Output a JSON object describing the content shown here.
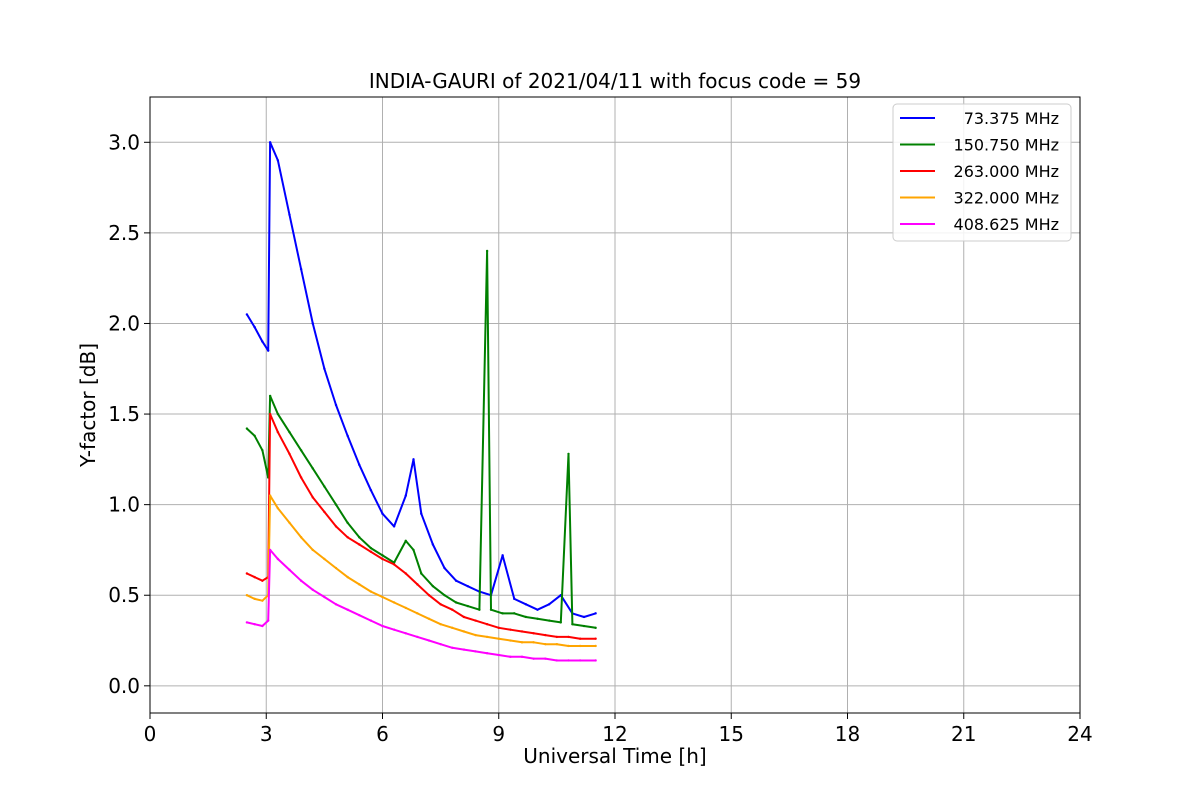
{
  "chart_data": {
    "type": "line",
    "title": "INDIA-GAURI of 2021/04/11 with focus code = 59",
    "xlabel": "Universal Time [h]",
    "ylabel": "Y-factor [dB]",
    "xlim": [
      0,
      24
    ],
    "ylim": [
      -0.15,
      3.25
    ],
    "xticks": [
      0,
      3,
      6,
      9,
      12,
      15,
      18,
      21,
      24
    ],
    "xtick_labels": [
      "0",
      "3",
      "6",
      "9",
      "12",
      "15",
      "18",
      "21",
      "24"
    ],
    "yticks": [
      0.0,
      0.5,
      1.0,
      1.5,
      2.0,
      2.5,
      3.0
    ],
    "ytick_labels": [
      "0.0",
      "0.5",
      "1.0",
      "1.5",
      "2.0",
      "2.5",
      "3.0"
    ],
    "grid": true,
    "legend_position": "top-right",
    "series": [
      {
        "name": "73.375 MHz",
        "color": "#0000ff",
        "x": [
          2.5,
          2.7,
          2.9,
          3.05,
          3.1,
          3.3,
          3.6,
          3.9,
          4.2,
          4.5,
          4.8,
          5.1,
          5.4,
          5.7,
          6.0,
          6.3,
          6.6,
          6.8,
          7.0,
          7.3,
          7.6,
          7.9,
          8.2,
          8.5,
          8.8,
          9.1,
          9.4,
          9.7,
          10.0,
          10.3,
          10.6,
          10.9,
          11.2,
          11.5
        ],
        "y": [
          2.05,
          1.98,
          1.9,
          1.85,
          3.0,
          2.9,
          2.6,
          2.3,
          2.0,
          1.75,
          1.55,
          1.38,
          1.22,
          1.08,
          0.95,
          0.88,
          1.05,
          1.25,
          0.95,
          0.78,
          0.65,
          0.58,
          0.55,
          0.52,
          0.5,
          0.72,
          0.48,
          0.45,
          0.42,
          0.45,
          0.5,
          0.4,
          0.38,
          0.4
        ]
      },
      {
        "name": "150.750 MHz",
        "color": "#008000",
        "x": [
          2.5,
          2.7,
          2.9,
          3.05,
          3.1,
          3.3,
          3.6,
          3.9,
          4.2,
          4.5,
          4.8,
          5.1,
          5.4,
          5.7,
          6.0,
          6.3,
          6.6,
          6.8,
          7.0,
          7.3,
          7.6,
          7.9,
          8.2,
          8.5,
          8.7,
          8.8,
          9.1,
          9.4,
          9.7,
          10.0,
          10.3,
          10.6,
          10.8,
          10.9,
          11.2,
          11.5
        ],
        "y": [
          1.42,
          1.38,
          1.3,
          1.15,
          1.6,
          1.5,
          1.4,
          1.3,
          1.2,
          1.1,
          1.0,
          0.9,
          0.82,
          0.76,
          0.72,
          0.68,
          0.8,
          0.75,
          0.62,
          0.55,
          0.5,
          0.46,
          0.44,
          0.42,
          2.4,
          0.42,
          0.4,
          0.4,
          0.38,
          0.37,
          0.36,
          0.35,
          1.28,
          0.34,
          0.33,
          0.32
        ]
      },
      {
        "name": "263.000 MHz",
        "color": "#ff0000",
        "x": [
          2.5,
          2.7,
          2.9,
          3.05,
          3.1,
          3.3,
          3.6,
          3.9,
          4.2,
          4.5,
          4.8,
          5.1,
          5.4,
          5.7,
          6.0,
          6.3,
          6.6,
          6.9,
          7.2,
          7.5,
          7.8,
          8.1,
          8.4,
          8.7,
          9.0,
          9.3,
          9.6,
          9.9,
          10.2,
          10.5,
          10.8,
          11.1,
          11.5
        ],
        "y": [
          0.62,
          0.6,
          0.58,
          0.6,
          1.5,
          1.4,
          1.28,
          1.15,
          1.04,
          0.96,
          0.88,
          0.82,
          0.78,
          0.74,
          0.7,
          0.67,
          0.62,
          0.56,
          0.5,
          0.45,
          0.42,
          0.38,
          0.36,
          0.34,
          0.32,
          0.31,
          0.3,
          0.29,
          0.28,
          0.27,
          0.27,
          0.26,
          0.26
        ]
      },
      {
        "name": "322.000 MHz",
        "color": "#ffa500",
        "x": [
          2.5,
          2.7,
          2.9,
          3.05,
          3.1,
          3.3,
          3.6,
          3.9,
          4.2,
          4.5,
          4.8,
          5.1,
          5.4,
          5.7,
          6.0,
          6.3,
          6.6,
          6.9,
          7.2,
          7.5,
          7.8,
          8.1,
          8.4,
          8.7,
          9.0,
          9.3,
          9.6,
          9.9,
          10.2,
          10.5,
          10.8,
          11.1,
          11.5
        ],
        "y": [
          0.5,
          0.48,
          0.47,
          0.5,
          1.05,
          0.98,
          0.9,
          0.82,
          0.75,
          0.7,
          0.65,
          0.6,
          0.56,
          0.52,
          0.49,
          0.46,
          0.43,
          0.4,
          0.37,
          0.34,
          0.32,
          0.3,
          0.28,
          0.27,
          0.26,
          0.25,
          0.24,
          0.24,
          0.23,
          0.23,
          0.22,
          0.22,
          0.22
        ]
      },
      {
        "name": "408.625 MHz",
        "color": "#ff00ff",
        "x": [
          2.5,
          2.7,
          2.9,
          3.05,
          3.1,
          3.3,
          3.6,
          3.9,
          4.2,
          4.5,
          4.8,
          5.1,
          5.4,
          5.7,
          6.0,
          6.3,
          6.6,
          6.9,
          7.2,
          7.5,
          7.8,
          8.1,
          8.4,
          8.7,
          9.0,
          9.3,
          9.6,
          9.9,
          10.2,
          10.5,
          10.8,
          11.1,
          11.5
        ],
        "y": [
          0.35,
          0.34,
          0.33,
          0.36,
          0.75,
          0.7,
          0.64,
          0.58,
          0.53,
          0.49,
          0.45,
          0.42,
          0.39,
          0.36,
          0.33,
          0.31,
          0.29,
          0.27,
          0.25,
          0.23,
          0.21,
          0.2,
          0.19,
          0.18,
          0.17,
          0.16,
          0.16,
          0.15,
          0.15,
          0.14,
          0.14,
          0.14,
          0.14
        ]
      }
    ]
  }
}
